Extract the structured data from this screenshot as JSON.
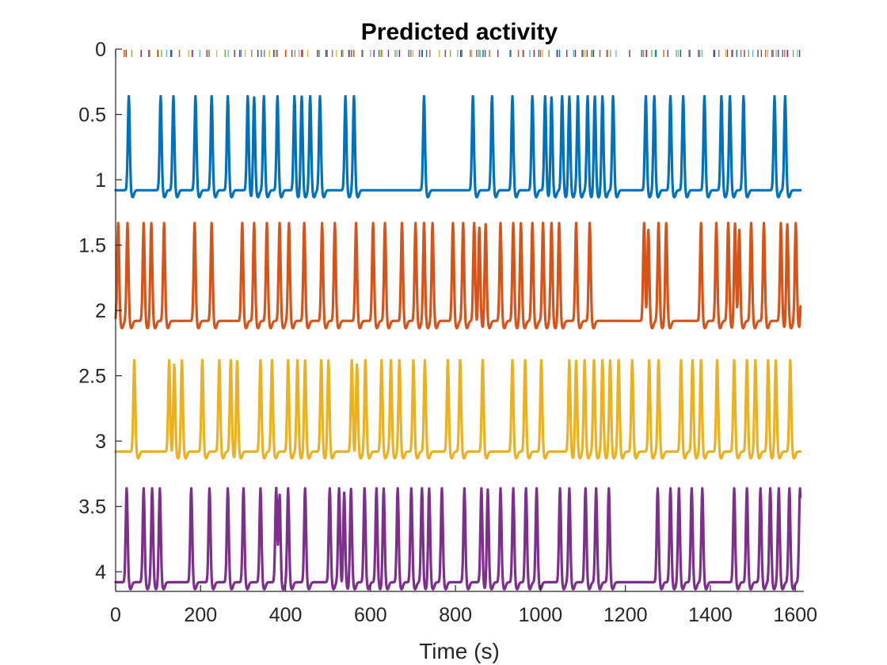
{
  "chart_data": {
    "type": "line",
    "title": "Predicted activity",
    "xlabel": "Time (s)",
    "ylabel": "",
    "xlim": [
      0,
      1620
    ],
    "ylim": [
      0,
      4.15
    ],
    "y_reversed": true,
    "x_ticks": [
      0,
      200,
      400,
      600,
      800,
      1000,
      1200,
      1400,
      1600
    ],
    "x_tick_labels": [
      "0",
      "200",
      "400",
      "600",
      "800",
      "1000",
      "1200",
      "1400",
      "1600"
    ],
    "y_ticks": [
      0,
      0.5,
      1,
      1.5,
      2,
      2.5,
      3,
      3.5,
      4
    ],
    "y_tick_labels": [
      "0",
      "0.5",
      "1",
      "1.5",
      "2",
      "2.5",
      "3",
      "3.5",
      "4"
    ],
    "grid": false,
    "legend": "none",
    "series": [
      {
        "color": "#0072BD",
        "baseline": 1.08,
        "peak_amplitude": 0.72,
        "onsets": [
          25,
          100,
          130,
          182,
          220,
          258,
          305,
          320,
          343,
          375,
          415,
          432,
          452,
          475,
          535,
          555,
          720,
          835,
          880,
          928,
          975,
          1005,
          1020,
          1045,
          1062,
          1082,
          1105,
          1122,
          1140,
          1165,
          1242,
          1262,
          1300,
          1330,
          1380,
          1420,
          1440,
          1472,
          1545,
          1570
        ]
      },
      {
        "color": "#D95319",
        "baseline": 2.08,
        "peak_amplitude": 0.75,
        "onsets": [
          0,
          22,
          60,
          78,
          108,
          180,
          220,
          292,
          320,
          350,
          380,
          402,
          438,
          480,
          510,
          560,
          600,
          628,
          668,
          700,
          720,
          740,
          788,
          812,
          838,
          850,
          865,
          900,
          930,
          948,
          975,
          1000,
          1020,
          1038,
          1078,
          1110,
          1238,
          1248,
          1272,
          1290,
          1372,
          1408,
          1436,
          1452,
          1462,
          1490,
          1520,
          1560,
          1575,
          1595,
          1610
        ]
      },
      {
        "color": "#EDB120",
        "baseline": 3.08,
        "peak_amplitude": 0.7,
        "onsets": [
          38,
          120,
          132,
          150,
          198,
          238,
          265,
          280,
          335,
          362,
          400,
          422,
          440,
          478,
          495,
          550,
          562,
          582,
          620,
          642,
          662,
          695,
          722,
          776,
          805,
          858,
          928,
          958,
          996,
          1062,
          1078,
          1098,
          1120,
          1140,
          1158,
          1178,
          1210,
          1250,
          1272,
          1325,
          1352,
          1372,
          1410,
          1450,
          1480,
          1500,
          1530,
          1548,
          1582
        ]
      },
      {
        "color": "#7E2F8E",
        "baseline": 4.08,
        "peak_amplitude": 0.72,
        "onsets": [
          20,
          60,
          80,
          98,
          172,
          215,
          258,
          295,
          335,
          372,
          380,
          400,
          440,
          498,
          520,
          532,
          548,
          580,
          608,
          625,
          658,
          690,
          715,
          732,
          762,
          815,
          855,
          870,
          900,
          930,
          960,
          985,
          1040,
          1062,
          1100,
          1125,
          1155,
          1270,
          1300,
          1320,
          1350,
          1375,
          1450,
          1480,
          1512,
          1535,
          1555,
          1580,
          1605
        ]
      }
    ],
    "event_colors": [
      "#0072BD",
      "#D95319",
      "#EDB120",
      "#7E2F8E",
      "#77AC30",
      "#4DBEEE",
      "#A2142F"
    ]
  }
}
